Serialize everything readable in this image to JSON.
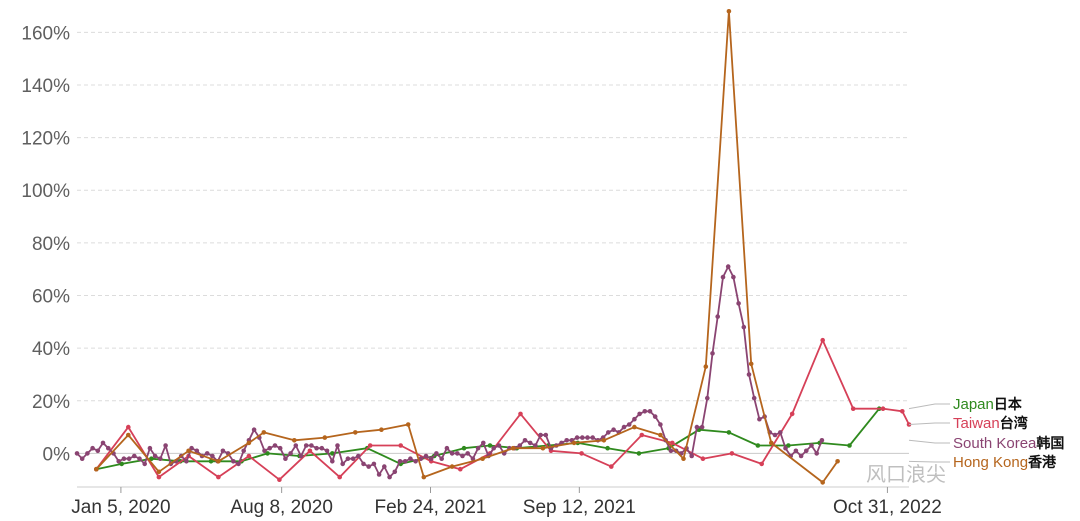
{
  "watermark": "风口浪尖",
  "chart_data": {
    "type": "line",
    "title": "",
    "xlabel": "",
    "ylabel": "",
    "ylim": [
      -0.12,
      1.7
    ],
    "yticks": [
      0,
      0.2,
      0.4,
      0.6,
      0.8,
      1.0,
      1.2,
      1.4,
      1.6
    ],
    "ytick_labels": [
      "0%",
      "20%",
      "40%",
      "60%",
      "80%",
      "100%",
      "120%",
      "140%",
      "160%"
    ],
    "xlim": [
      "2019-11-07",
      "2022-11-29"
    ],
    "xticks": [
      "2020-01-05",
      "2020-08-08",
      "2021-02-24",
      "2021-09-12",
      "2022-10-31"
    ],
    "xtick_labels": [
      "Jan 5, 2020",
      "Aug 8, 2020",
      "Feb 24, 2021",
      "Sep 12, 2021",
      "Oct 31, 2022"
    ],
    "grid": true,
    "legend_position": "right",
    "series": [
      {
        "name": "Japan",
        "name_zh": "日本",
        "color": "#2f8a1e",
        "points": [
          [
            "2019-12-03",
            -0.06
          ],
          [
            "2020-01-06",
            -0.04
          ],
          [
            "2020-02-15",
            -0.02
          ],
          [
            "2020-03-25",
            -0.03
          ],
          [
            "2020-05-05",
            -0.03
          ],
          [
            "2020-06-15",
            -0.03
          ],
          [
            "2020-07-20",
            0.0
          ],
          [
            "2020-09-01",
            -0.01
          ],
          [
            "2020-10-15",
            0.0
          ],
          [
            "2020-12-01",
            0.02
          ],
          [
            "2021-01-15",
            -0.04
          ],
          [
            "2021-03-01",
            -0.01
          ],
          [
            "2021-04-10",
            0.02
          ],
          [
            "2021-05-15",
            0.03
          ],
          [
            "2021-06-20",
            0.02
          ],
          [
            "2021-08-01",
            0.03
          ],
          [
            "2021-09-10",
            0.04
          ],
          [
            "2021-10-20",
            0.02
          ],
          [
            "2021-12-01",
            0.0
          ],
          [
            "2022-01-10",
            0.02
          ],
          [
            "2022-02-20",
            0.09
          ],
          [
            "2022-04-01",
            0.08
          ],
          [
            "2022-05-10",
            0.03
          ],
          [
            "2022-06-20",
            0.03
          ],
          [
            "2022-08-01",
            0.04
          ],
          [
            "2022-09-10",
            0.03
          ],
          [
            "2022-10-20",
            0.17
          ]
        ]
      },
      {
        "name": "Taiwan",
        "name_zh": "台湾",
        "color": "#d64058",
        "points": [
          [
            "2019-12-03",
            -0.06
          ],
          [
            "2020-01-15",
            0.1
          ],
          [
            "2020-02-25",
            -0.09
          ],
          [
            "2020-04-05",
            -0.01
          ],
          [
            "2020-05-15",
            -0.09
          ],
          [
            "2020-06-25",
            -0.01
          ],
          [
            "2020-08-05",
            -0.1
          ],
          [
            "2020-09-15",
            0.01
          ],
          [
            "2020-10-25",
            -0.09
          ],
          [
            "2020-12-05",
            0.03
          ],
          [
            "2021-01-15",
            0.03
          ],
          [
            "2021-02-25",
            -0.03
          ],
          [
            "2021-04-05",
            -0.06
          ],
          [
            "2021-05-15",
            0.0
          ],
          [
            "2021-06-25",
            0.15
          ],
          [
            "2021-08-05",
            0.01
          ],
          [
            "2021-09-15",
            0.0
          ],
          [
            "2021-10-25",
            -0.05
          ],
          [
            "2021-12-05",
            0.07
          ],
          [
            "2022-01-15",
            0.04
          ],
          [
            "2022-02-25",
            -0.02
          ],
          [
            "2022-04-05",
            0.0
          ],
          [
            "2022-05-15",
            -0.04
          ],
          [
            "2022-06-25",
            0.15
          ],
          [
            "2022-08-05",
            0.43
          ],
          [
            "2022-09-15",
            0.17
          ],
          [
            "2022-10-25",
            0.17
          ],
          [
            "2022-11-20",
            0.16
          ],
          [
            "2022-11-29",
            0.11
          ]
        ]
      },
      {
        "name": "South Korea",
        "name_zh": "韩国",
        "color": "#8a4472",
        "points": [
          [
            "2019-11-07",
            0.0
          ],
          [
            "2019-11-14",
            -0.02
          ],
          [
            "2019-11-21",
            0.0
          ],
          [
            "2019-11-28",
            0.02
          ],
          [
            "2019-12-05",
            0.01
          ],
          [
            "2019-12-12",
            0.04
          ],
          [
            "2019-12-19",
            0.02
          ],
          [
            "2019-12-26",
            0.0
          ],
          [
            "2020-01-02",
            -0.03
          ],
          [
            "2020-01-09",
            -0.02
          ],
          [
            "2020-01-16",
            -0.02
          ],
          [
            "2020-01-23",
            -0.01
          ],
          [
            "2020-01-30",
            -0.02
          ],
          [
            "2020-02-06",
            -0.04
          ],
          [
            "2020-02-13",
            0.02
          ],
          [
            "2020-02-20",
            -0.01
          ],
          [
            "2020-02-27",
            -0.02
          ],
          [
            "2020-03-05",
            0.03
          ],
          [
            "2020-03-12",
            -0.04
          ],
          [
            "2020-03-19",
            -0.03
          ],
          [
            "2020-03-26",
            -0.01
          ],
          [
            "2020-04-02",
            -0.03
          ],
          [
            "2020-04-09",
            0.02
          ],
          [
            "2020-04-16",
            0.01
          ],
          [
            "2020-04-23",
            -0.01
          ],
          [
            "2020-04-30",
            0.0
          ],
          [
            "2020-05-07",
            -0.01
          ],
          [
            "2020-05-14",
            -0.03
          ],
          [
            "2020-05-21",
            0.01
          ],
          [
            "2020-05-28",
            0.0
          ],
          [
            "2020-06-04",
            -0.03
          ],
          [
            "2020-06-11",
            -0.04
          ],
          [
            "2020-06-18",
            0.01
          ],
          [
            "2020-06-25",
            0.05
          ],
          [
            "2020-07-02",
            0.09
          ],
          [
            "2020-07-09",
            0.06
          ],
          [
            "2020-07-16",
            0.01
          ],
          [
            "2020-07-23",
            0.02
          ],
          [
            "2020-07-30",
            0.03
          ],
          [
            "2020-08-06",
            0.02
          ],
          [
            "2020-08-13",
            -0.02
          ],
          [
            "2020-08-20",
            0.0
          ],
          [
            "2020-08-27",
            0.03
          ],
          [
            "2020-09-03",
            -0.01
          ],
          [
            "2020-09-10",
            0.03
          ],
          [
            "2020-09-17",
            0.03
          ],
          [
            "2020-09-24",
            0.02
          ],
          [
            "2020-10-01",
            0.02
          ],
          [
            "2020-10-08",
            0.01
          ],
          [
            "2020-10-15",
            -0.03
          ],
          [
            "2020-10-22",
            0.03
          ],
          [
            "2020-10-29",
            -0.04
          ],
          [
            "2020-11-05",
            -0.02
          ],
          [
            "2020-11-12",
            -0.02
          ],
          [
            "2020-11-19",
            -0.01
          ],
          [
            "2020-11-26",
            -0.04
          ],
          [
            "2020-12-03",
            -0.05
          ],
          [
            "2020-12-10",
            -0.04
          ],
          [
            "2020-12-17",
            -0.08
          ],
          [
            "2020-12-24",
            -0.05
          ],
          [
            "2020-12-31",
            -0.09
          ],
          [
            "2021-01-07",
            -0.07
          ],
          [
            "2021-01-14",
            -0.03
          ],
          [
            "2021-01-21",
            -0.03
          ],
          [
            "2021-01-28",
            -0.02
          ],
          [
            "2021-02-04",
            -0.03
          ],
          [
            "2021-02-11",
            -0.02
          ],
          [
            "2021-02-18",
            -0.01
          ],
          [
            "2021-02-25",
            -0.02
          ],
          [
            "2021-03-04",
            0.0
          ],
          [
            "2021-03-11",
            -0.02
          ],
          [
            "2021-03-18",
            0.02
          ],
          [
            "2021-03-25",
            0.0
          ],
          [
            "2021-04-01",
            0.0
          ],
          [
            "2021-04-08",
            -0.01
          ],
          [
            "2021-04-15",
            0.0
          ],
          [
            "2021-04-22",
            -0.02
          ],
          [
            "2021-04-29",
            0.02
          ],
          [
            "2021-05-06",
            0.04
          ],
          [
            "2021-05-13",
            -0.01
          ],
          [
            "2021-05-20",
            0.02
          ],
          [
            "2021-05-27",
            0.03
          ],
          [
            "2021-06-03",
            0.0
          ],
          [
            "2021-06-10",
            0.02
          ],
          [
            "2021-06-17",
            0.02
          ],
          [
            "2021-06-24",
            0.03
          ],
          [
            "2021-07-01",
            0.05
          ],
          [
            "2021-07-08",
            0.04
          ],
          [
            "2021-07-15",
            0.03
          ],
          [
            "2021-07-22",
            0.07
          ],
          [
            "2021-07-29",
            0.07
          ],
          [
            "2021-08-05",
            0.02
          ],
          [
            "2021-08-12",
            0.03
          ],
          [
            "2021-08-19",
            0.04
          ],
          [
            "2021-08-26",
            0.05
          ],
          [
            "2021-09-02",
            0.05
          ],
          [
            "2021-09-09",
            0.06
          ],
          [
            "2021-09-16",
            0.06
          ],
          [
            "2021-09-23",
            0.06
          ],
          [
            "2021-09-30",
            0.06
          ],
          [
            "2021-10-07",
            0.05
          ],
          [
            "2021-10-14",
            0.06
          ],
          [
            "2021-10-21",
            0.08
          ],
          [
            "2021-10-28",
            0.09
          ],
          [
            "2021-11-04",
            0.08
          ],
          [
            "2021-11-11",
            0.1
          ],
          [
            "2021-11-18",
            0.11
          ],
          [
            "2021-11-25",
            0.13
          ],
          [
            "2021-12-02",
            0.15
          ],
          [
            "2021-12-09",
            0.16
          ],
          [
            "2021-12-16",
            0.16
          ],
          [
            "2021-12-23",
            0.14
          ],
          [
            "2021-12-30",
            0.11
          ],
          [
            "2022-01-06",
            0.05
          ],
          [
            "2022-01-13",
            0.01
          ],
          [
            "2022-01-20",
            0.01
          ],
          [
            "2022-01-27",
            0.0
          ],
          [
            "2022-02-03",
            0.02
          ],
          [
            "2022-02-10",
            -0.01
          ],
          [
            "2022-02-17",
            0.1
          ],
          [
            "2022-02-24",
            0.1
          ],
          [
            "2022-03-03",
            0.21
          ],
          [
            "2022-03-10",
            0.38
          ],
          [
            "2022-03-17",
            0.52
          ],
          [
            "2022-03-24",
            0.67
          ],
          [
            "2022-03-31",
            0.71
          ],
          [
            "2022-04-07",
            0.67
          ],
          [
            "2022-04-14",
            0.57
          ],
          [
            "2022-04-21",
            0.48
          ],
          [
            "2022-04-28",
            0.3
          ],
          [
            "2022-05-05",
            0.21
          ],
          [
            "2022-05-12",
            0.13
          ],
          [
            "2022-05-19",
            0.14
          ],
          [
            "2022-05-26",
            0.08
          ],
          [
            "2022-06-02",
            0.07
          ],
          [
            "2022-06-09",
            0.08
          ],
          [
            "2022-06-16",
            0.02
          ],
          [
            "2022-06-23",
            -0.01
          ],
          [
            "2022-06-30",
            0.01
          ],
          [
            "2022-07-07",
            -0.01
          ],
          [
            "2022-07-14",
            0.01
          ],
          [
            "2022-07-21",
            0.03
          ],
          [
            "2022-07-28",
            0.0
          ],
          [
            "2022-08-04",
            0.05
          ]
        ]
      },
      {
        "name": "Hong Kong",
        "name_zh": "香港",
        "color": "#b5651d",
        "points": [
          [
            "2019-12-03",
            -0.06
          ],
          [
            "2020-01-15",
            0.07
          ],
          [
            "2020-02-25",
            -0.07
          ],
          [
            "2020-04-05",
            0.01
          ],
          [
            "2020-05-15",
            -0.03
          ],
          [
            "2020-06-25",
            0.04
          ],
          [
            "2020-07-15",
            0.08
          ],
          [
            "2020-08-25",
            0.05
          ],
          [
            "2020-10-05",
            0.06
          ],
          [
            "2020-11-15",
            0.08
          ],
          [
            "2020-12-20",
            0.09
          ],
          [
            "2021-01-25",
            0.11
          ],
          [
            "2021-02-15",
            -0.09
          ],
          [
            "2021-03-25",
            -0.05
          ],
          [
            "2021-05-05",
            -0.02
          ],
          [
            "2021-06-15",
            0.02
          ],
          [
            "2021-07-25",
            0.02
          ],
          [
            "2021-09-05",
            0.04
          ],
          [
            "2021-10-15",
            0.05
          ],
          [
            "2021-11-25",
            0.1
          ],
          [
            "2021-12-30",
            0.07
          ],
          [
            "2022-01-30",
            -0.02
          ],
          [
            "2022-03-01",
            0.33
          ],
          [
            "2022-04-01",
            1.68
          ],
          [
            "2022-05-01",
            0.34
          ],
          [
            "2022-05-28",
            0.04
          ],
          [
            "2022-08-05",
            -0.11
          ],
          [
            "2022-08-25",
            -0.03
          ]
        ]
      }
    ]
  }
}
